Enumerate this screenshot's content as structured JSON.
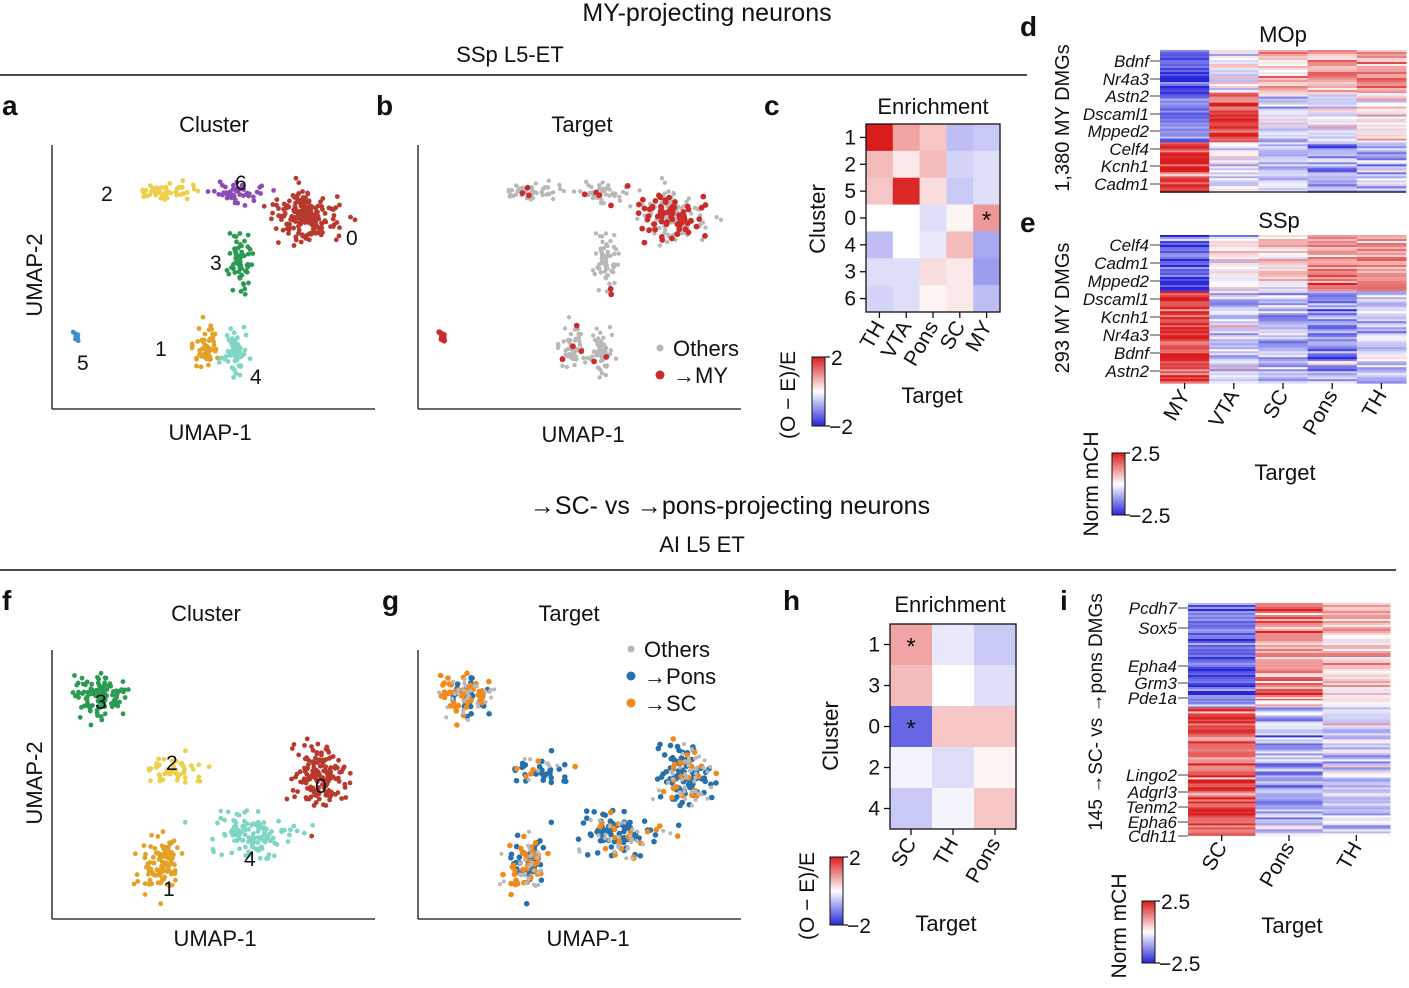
{
  "colors": {
    "c0": "#b8392e",
    "c1": "#e3a128",
    "c2": "#ecd04a",
    "c3": "#2c9a52",
    "c4": "#7fd6c4",
    "c5": "#3a8ed3",
    "c6": "#8f4ab3",
    "others": "#b8b8b8",
    "my": "#cc2b2b",
    "pons": "#2570ad",
    "sc": "#f08a1c"
  },
  "top": {
    "title": "MY-projecting neurons",
    "subtitle": "SSp L5-ET"
  },
  "bottom": {
    "title": "→SC- vs →pons-projecting neurons",
    "subtitle": "AI L5 ET"
  },
  "chart_data": [
    {
      "id": "a",
      "type": "scatter",
      "panel_letter": "a",
      "title": "Cluster",
      "xlabel": "UMAP-1",
      "ylabel": "UMAP-2",
      "clusters": [
        {
          "name": "0",
          "n": 180,
          "center": [
            0.83,
            0.27
          ],
          "spread": [
            0.09,
            0.08
          ]
        },
        {
          "name": "6",
          "n": 45,
          "center": [
            0.6,
            0.17
          ],
          "spread": [
            0.07,
            0.04
          ]
        },
        {
          "name": "2",
          "n": 50,
          "center": [
            0.36,
            0.17
          ],
          "spread": [
            0.07,
            0.03
          ]
        },
        {
          "name": "3",
          "n": 70,
          "center": [
            0.61,
            0.46
          ],
          "spread": [
            0.03,
            0.1
          ]
        },
        {
          "name": "1",
          "n": 55,
          "center": [
            0.49,
            0.8
          ],
          "spread": [
            0.03,
            0.08
          ]
        },
        {
          "name": "4",
          "n": 60,
          "center": [
            0.59,
            0.83
          ],
          "spread": [
            0.03,
            0.08
          ]
        },
        {
          "name": "5",
          "n": 7,
          "center": [
            0.06,
            0.75
          ],
          "spread": [
            0.01,
            0.02
          ]
        }
      ]
    },
    {
      "id": "b",
      "type": "scatter",
      "panel_letter": "b",
      "title": "Target",
      "xlabel": "UMAP-1",
      "legend": [
        "Others",
        "→MY"
      ]
    },
    {
      "id": "c",
      "type": "heatmap",
      "panel_letter": "c",
      "title": "Enrichment",
      "ylabel": "Cluster",
      "xlabel": "Target",
      "rows": [
        "1",
        "2",
        "5",
        "0",
        "4",
        "3",
        "6"
      ],
      "cols": [
        "TH",
        "VTA",
        "Pons",
        "SC",
        "MY"
      ],
      "values": [
        [
          2.0,
          0.8,
          0.5,
          -0.6,
          -0.5
        ],
        [
          0.6,
          0.2,
          0.6,
          -0.4,
          -0.3
        ],
        [
          0.5,
          1.9,
          0.3,
          -0.5,
          -0.3
        ],
        [
          0.0,
          0.0,
          -0.3,
          0.1,
          0.9
        ],
        [
          -0.6,
          0.0,
          -0.2,
          0.6,
          -0.8
        ],
        [
          -0.3,
          -0.3,
          0.3,
          0.2,
          -0.9
        ],
        [
          -0.4,
          -0.3,
          0.1,
          0.2,
          -0.6
        ]
      ],
      "star": [
        3,
        4
      ],
      "colorbar": {
        "label": "(O − E)/E",
        "min": -2,
        "max": 2
      }
    },
    {
      "id": "d",
      "type": "heatmap",
      "panel_letter": "d",
      "title": "MOp",
      "ylabel": "1,380 MY DMGs",
      "genes": [
        "Bdnf",
        "Nr4a3",
        "Astn2",
        "Dscaml1",
        "Mpped2",
        "Celf4",
        "Kcnh1",
        "Cadm1"
      ]
    },
    {
      "id": "e",
      "type": "heatmap",
      "panel_letter": "e",
      "title": "SSp",
      "ylabel": "293 MY DMGs",
      "xlabel": "Target",
      "genes": [
        "Celf4",
        "Cadm1",
        "Mpped2",
        "Dscaml1",
        "Kcnh1",
        "Nr4a3",
        "Bdnf",
        "Astn2"
      ],
      "cols": [
        "MY",
        "VTA",
        "SC",
        "Pons",
        "TH"
      ],
      "colorbar": {
        "label": "Norm mCH",
        "min": -2.5,
        "max": 2.5
      }
    },
    {
      "id": "f",
      "type": "scatter",
      "panel_letter": "f",
      "title": "Cluster",
      "xlabel": "UMAP-1",
      "ylabel": "UMAP-2",
      "clusters": [
        {
          "name": "3",
          "n": 110,
          "center": [
            0.13,
            0.16
          ],
          "spread": [
            0.07,
            0.07
          ]
        },
        {
          "name": "2",
          "n": 45,
          "center": [
            0.38,
            0.45
          ],
          "spread": [
            0.1,
            0.05
          ]
        },
        {
          "name": "0",
          "n": 160,
          "center": [
            0.86,
            0.48
          ],
          "spread": [
            0.07,
            0.12
          ]
        },
        {
          "name": "4",
          "n": 120,
          "center": [
            0.63,
            0.71
          ],
          "spread": [
            0.12,
            0.08
          ]
        },
        {
          "name": "1",
          "n": 110,
          "center": [
            0.34,
            0.82
          ],
          "spread": [
            0.05,
            0.1
          ]
        }
      ]
    },
    {
      "id": "g",
      "type": "scatter",
      "panel_letter": "g",
      "title": "Target",
      "xlabel": "UMAP-1",
      "legend": [
        "Others",
        "→Pons",
        "→SC"
      ]
    },
    {
      "id": "h",
      "type": "heatmap",
      "panel_letter": "h",
      "title": "Enrichment",
      "ylabel": "Cluster",
      "xlabel": "Target",
      "rows": [
        "1",
        "3",
        "0",
        "2",
        "4"
      ],
      "cols": [
        "SC",
        "TH",
        "Pons"
      ],
      "values": [
        [
          0.8,
          -0.2,
          -0.5
        ],
        [
          0.6,
          0.0,
          -0.3
        ],
        [
          -1.4,
          0.5,
          0.5
        ],
        [
          -0.1,
          -0.3,
          0.1
        ],
        [
          -0.5,
          -0.1,
          0.5
        ]
      ],
      "stars": [
        [
          0,
          0
        ],
        [
          2,
          0
        ]
      ],
      "colorbar": {
        "label": "(O − E)/E",
        "min": -2,
        "max": 2
      }
    },
    {
      "id": "i",
      "type": "heatmap",
      "panel_letter": "i",
      "ylabel": "145 →SC- vs →pons DMGs",
      "xlabel": "Target",
      "genes": [
        "Pcdh7",
        "Sox5",
        "Epha4",
        "Grm3",
        "Pde1a",
        "Lingo2",
        "Adgrl3",
        "Tenm2",
        "Epha6",
        "Cdh11"
      ],
      "cols": [
        "SC",
        "Pons",
        "TH"
      ],
      "colorbar": {
        "label": "Norm mCH",
        "min": -2.5,
        "max": 2.5
      }
    }
  ]
}
